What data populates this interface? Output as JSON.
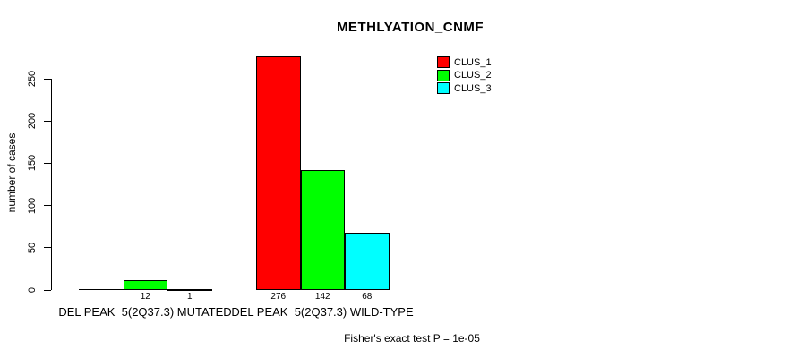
{
  "chart_data": {
    "type": "bar",
    "title": "METHLYATION_CNMF",
    "ylabel": "number of cases",
    "xlabel": "",
    "annotation": "Fisher's exact test P = 1e-05",
    "ylim": [
      0,
      250
    ],
    "yticks": [
      0,
      50,
      100,
      150,
      200,
      250
    ],
    "grid": false,
    "legend_position": "top-right",
    "series": [
      {
        "name": "CLUS_1",
        "color": "#ff0000"
      },
      {
        "name": "CLUS_2",
        "color": "#00ff00"
      },
      {
        "name": "CLUS_3",
        "color": "#00ffff"
      }
    ],
    "groups": [
      {
        "label": "DEL PEAK  5(2Q37.3) MUTATED",
        "values": [
          0,
          12,
          1
        ],
        "value_labels": [
          "",
          "12",
          "1"
        ]
      },
      {
        "label": "DEL PEAK  5(2Q37.3) WILD-TYPE",
        "values": [
          276,
          142,
          68
        ],
        "value_labels": [
          "276",
          "142",
          "68"
        ]
      }
    ]
  }
}
